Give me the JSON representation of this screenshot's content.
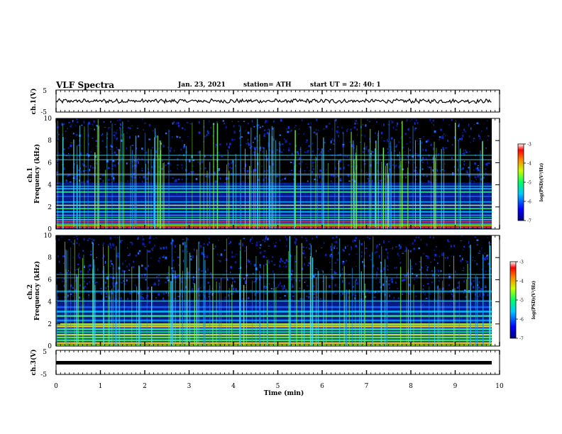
{
  "header": {
    "title": "VLF Spectra",
    "date": "Jan. 23, 2021",
    "station": "station= ATH",
    "start": "start  UT  =   22: 40: 1"
  },
  "chart_data": [
    {
      "type": "line",
      "panel": "ch1-waveform",
      "ylabel": "ch.1(V)",
      "ylim": [
        -5,
        5
      ],
      "yticks": [
        "5",
        "-5"
      ],
      "xlim": [
        0,
        10
      ],
      "approx_level": 0
    },
    {
      "type": "heatmap",
      "panel": "ch1-spectrogram",
      "ylabel_top": "ch.1",
      "ylabel": "Frequency (kHz)",
      "ylim": [
        0,
        10
      ],
      "yticks": [
        "0",
        "2",
        "4",
        "6",
        "8",
        "10"
      ],
      "xlim": [
        0,
        10
      ],
      "colorbar": {
        "label": "log(PSD)(V²/Hz)",
        "range": [
          -7,
          -3
        ],
        "ticks": [
          "-3",
          "-4",
          "-5",
          "-6",
          "-7"
        ]
      }
    },
    {
      "type": "heatmap",
      "panel": "ch2-spectrogram",
      "ylabel_top": "ch.2",
      "ylabel": "Frequency (kHz)",
      "ylim": [
        0,
        10
      ],
      "yticks": [
        "0",
        "2",
        "4",
        "6",
        "8",
        "10"
      ],
      "xlim": [
        0,
        10
      ],
      "colorbar": {
        "label": "log(PSD)(V²/Hz)",
        "range": [
          -7,
          -3
        ],
        "ticks": [
          "-3",
          "-4",
          "-5",
          "-6",
          "-7"
        ]
      }
    },
    {
      "type": "line",
      "panel": "ch3-waveform",
      "ylabel": "ch.3(V)",
      "ylim": [
        -5,
        5
      ],
      "yticks": [
        "5",
        "-5"
      ],
      "xlim": [
        0,
        10
      ],
      "xlabel": "Time (min)",
      "xticks": [
        "0",
        "1",
        "2",
        "3",
        "4",
        "5",
        "6",
        "7",
        "8",
        "9",
        "10"
      ],
      "approx_level": 0
    }
  ],
  "colors": {
    "background": "#000000",
    "noise": "#0a1a9a",
    "line_cyan": "#3fe6ff",
    "line_green": "#7dff3a"
  }
}
